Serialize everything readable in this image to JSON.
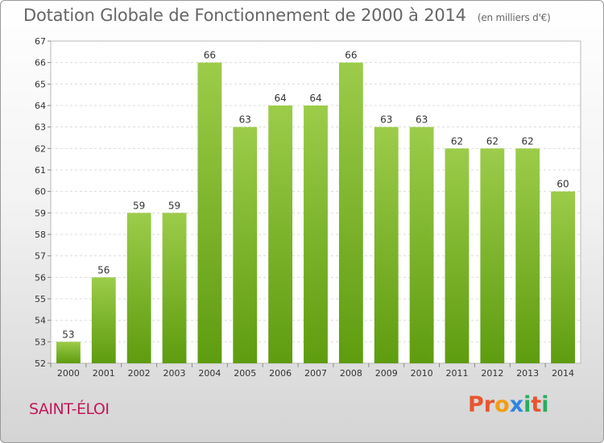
{
  "header": {
    "title": "Dotation Globale de Fonctionnement de 2000 à 2014",
    "unit": "(en milliers d'€)"
  },
  "footer": {
    "commune": "SAINT-ÉLOI",
    "brand": "Proxiti",
    "brand_colors": [
      "#e8542f",
      "#e8542f",
      "#f39c12",
      "#2e86de",
      "#27ae60",
      "#e8542f",
      "#27ae60"
    ]
  },
  "chart_data": {
    "type": "bar",
    "title": "Dotation Globale de Fonctionnement de 2000 à 2014",
    "subtitle": "(en milliers d'€)",
    "categories": [
      "2000",
      "2001",
      "2002",
      "2003",
      "2004",
      "2005",
      "2006",
      "2007",
      "2008",
      "2009",
      "2010",
      "2011",
      "2012",
      "2013",
      "2014"
    ],
    "values": [
      53,
      56,
      59,
      59,
      66,
      63,
      64,
      64,
      66,
      63,
      63,
      62,
      62,
      62,
      60
    ],
    "ylim": [
      52,
      67
    ],
    "yticks": [
      52,
      53,
      54,
      55,
      56,
      57,
      58,
      59,
      60,
      61,
      62,
      63,
      64,
      65,
      66,
      67
    ],
    "grid": true,
    "bar_color_top": "#9ccc4a",
    "bar_color_bottom": "#5e9c0f"
  }
}
